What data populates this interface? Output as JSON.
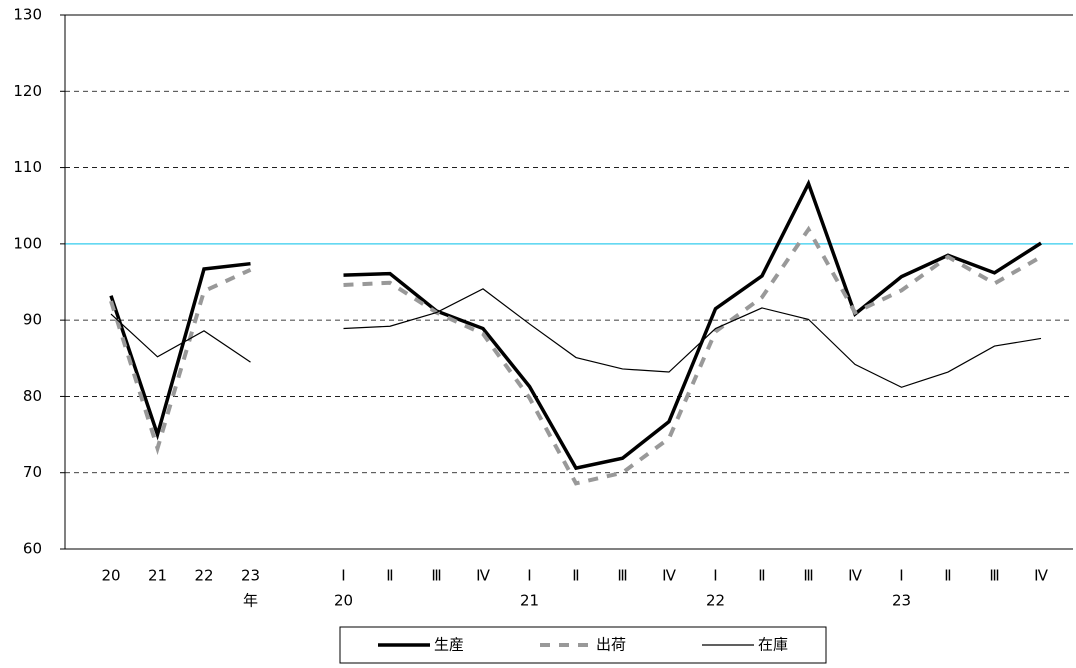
{
  "chart_data": {
    "type": "line",
    "categories": [
      "20",
      "21",
      "22",
      "23",
      null,
      "Ⅰ",
      "Ⅱ",
      "Ⅲ",
      "Ⅳ",
      "Ⅰ",
      "Ⅱ",
      "Ⅲ",
      "Ⅳ",
      "Ⅰ",
      "Ⅱ",
      "Ⅲ",
      "Ⅳ",
      "Ⅰ",
      "Ⅱ",
      "Ⅲ",
      "Ⅳ"
    ],
    "category_group_labels": [
      null,
      null,
      null,
      "年",
      null,
      "20",
      null,
      null,
      null,
      "21",
      null,
      null,
      null,
      "22",
      null,
      null,
      null,
      "23",
      null,
      null,
      null
    ],
    "series": [
      {
        "name": "生産",
        "color": "#000000",
        "style": "thick",
        "values": [
          93.2,
          75.0,
          96.7,
          97.4,
          null,
          95.9,
          96.1,
          91.2,
          88.9,
          81.3,
          70.6,
          71.9,
          76.7,
          91.5,
          95.8,
          107.9,
          90.8,
          95.7,
          98.5,
          96.2,
          100.1
        ]
      },
      {
        "name": "出荷",
        "color": "#999999",
        "style": "dashed",
        "values": [
          92.5,
          73.2,
          93.8,
          96.6,
          null,
          94.6,
          94.9,
          91.0,
          88.2,
          79.8,
          68.6,
          70.0,
          74.5,
          88.5,
          93.0,
          101.9,
          91.0,
          93.9,
          98.3,
          94.8,
          98.3
        ]
      },
      {
        "name": "在庫",
        "color": "#000000",
        "style": "thin",
        "values": [
          90.8,
          85.2,
          88.6,
          84.5,
          null,
          88.9,
          89.2,
          91.0,
          94.1,
          89.5,
          85.1,
          83.6,
          83.2,
          88.9,
          91.6,
          90.1,
          84.2,
          81.2,
          83.2,
          86.6,
          87.6
        ]
      }
    ],
    "ylim": [
      60,
      130
    ],
    "yticks": [
      60,
      70,
      80,
      90,
      100,
      110,
      120,
      130
    ],
    "grid": true,
    "reference_line": {
      "value": 100,
      "color": "#33ccee"
    },
    "legend": "bottom"
  }
}
